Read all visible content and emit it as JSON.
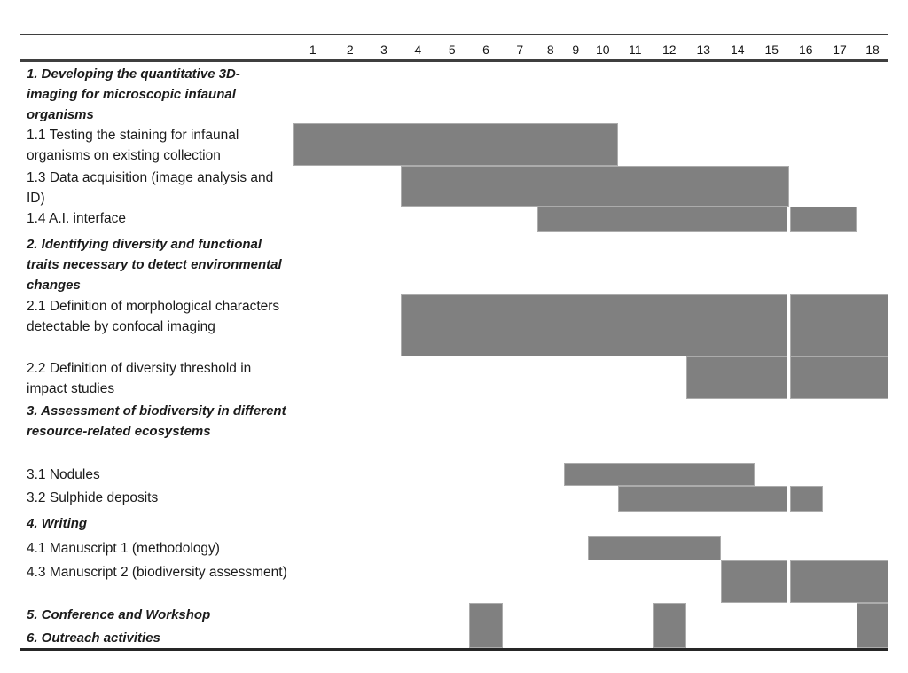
{
  "chart_data": {
    "type": "bar",
    "subtype": "gantt",
    "title": "",
    "grid": false,
    "bar_color": "#808080",
    "rule_color": "#3f3f3f",
    "x_axis": {
      "label": "",
      "ticks": [
        1,
        2,
        3,
        4,
        5,
        6,
        7,
        8,
        9,
        10,
        11,
        12,
        13,
        14,
        15,
        16,
        17,
        18
      ]
    },
    "rows": [
      {
        "id": "sec1",
        "kind": "section",
        "label": "1. Developing the quantitative 3D-imaging for microscopic infaunal organisms",
        "segments": []
      },
      {
        "id": "t1-1",
        "kind": "task",
        "label": "1.1 Testing the staining for infaunal organisms on existing collection",
        "segments": [
          [
            1,
            10
          ]
        ]
      },
      {
        "id": "t1-3",
        "kind": "task",
        "label": "1.3 Data acquisition (image analysis and ID)",
        "segments": [
          [
            4,
            15
          ]
        ]
      },
      {
        "id": "t1-4",
        "kind": "task",
        "label": "1.4 A.I. interface",
        "segments": [
          [
            8,
            15
          ],
          [
            16,
            17
          ]
        ]
      },
      {
        "id": "sec2",
        "kind": "section",
        "label": "2. Identifying diversity and functional traits necessary to detect environmental changes",
        "segments": []
      },
      {
        "id": "t2-1",
        "kind": "task",
        "label": "2.1 Definition of morphological characters detectable by confocal imaging",
        "segments": [
          [
            4,
            15
          ],
          [
            16,
            18
          ]
        ]
      },
      {
        "id": "t2-2",
        "kind": "task",
        "label": "2.2 Definition of diversity threshold in impact studies",
        "segments": [
          [
            13,
            15
          ],
          [
            16,
            18
          ]
        ]
      },
      {
        "id": "sec3",
        "kind": "section",
        "label": "3. Assessment of biodiversity in different resource-related ecosystems",
        "segments": []
      },
      {
        "id": "t3-1",
        "kind": "task",
        "label": "3.1 Nodules",
        "segments": [
          [
            9,
            14
          ]
        ]
      },
      {
        "id": "t3-2",
        "kind": "task",
        "label": "3.2 Sulphide deposits",
        "segments": [
          [
            11,
            15
          ],
          [
            16,
            16
          ]
        ]
      },
      {
        "id": "sec4",
        "kind": "section",
        "label": "4. Writing",
        "segments": []
      },
      {
        "id": "t4-1",
        "kind": "task",
        "label": "4.1 Manuscript 1 (methodology)",
        "segments": [
          [
            10,
            13
          ]
        ]
      },
      {
        "id": "t4-3",
        "kind": "task",
        "label": "4.3 Manuscript 2 (biodiversity assessment)",
        "segments": [
          [
            14,
            15
          ],
          [
            16,
            18
          ]
        ]
      },
      {
        "id": "sec5",
        "kind": "section",
        "label": "5. Conference and Workshop",
        "segments": []
      },
      {
        "id": "sec6",
        "kind": "section",
        "label": "6. Outreach activities",
        "segments": []
      }
    ],
    "footer_bars": {
      "applies_to_rows": [
        "sec5",
        "sec6"
      ],
      "segments": [
        [
          6,
          6
        ],
        [
          12,
          12
        ],
        [
          18,
          18
        ]
      ]
    }
  }
}
